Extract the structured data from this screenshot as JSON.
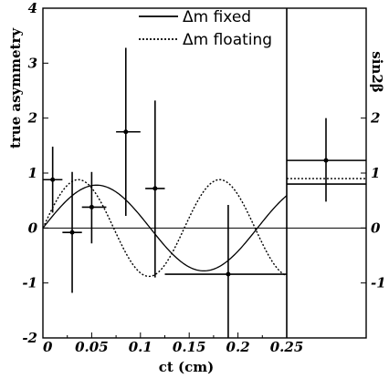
{
  "chart_data": {
    "type": "scatter",
    "xlabel": "ct (cm)",
    "ylabel": "true asymmetry",
    "y2label": "sin2β",
    "xlim": [
      0,
      0.25
    ],
    "ylim": [
      -2,
      4
    ],
    "x_ticks": [
      {
        "value": 0,
        "label": "0"
      },
      {
        "value": 0.05,
        "label": "0.05"
      },
      {
        "value": 0.1,
        "label": "0.1"
      },
      {
        "value": 0.15,
        "label": "0.15"
      },
      {
        "value": 0.2,
        "label": "0.2"
      },
      {
        "value": 0.25,
        "label": "0.25"
      }
    ],
    "y_ticks": [
      {
        "value": -2,
        "label": "-2"
      },
      {
        "value": -1,
        "label": "-1"
      },
      {
        "value": 0,
        "label": "0"
      },
      {
        "value": 1,
        "label": "1"
      },
      {
        "value": 2,
        "label": "2"
      },
      {
        "value": 3,
        "label": "3"
      },
      {
        "value": 4,
        "label": "4"
      }
    ],
    "y2_ticks": [
      {
        "value": -1,
        "label": "-1"
      },
      {
        "value": 0,
        "label": "0"
      },
      {
        "value": 1,
        "label": "1"
      },
      {
        "value": 2,
        "label": "2"
      }
    ],
    "legend": {
      "placement": "top-right",
      "entries": [
        {
          "label": "Δm fixed",
          "style": "solid"
        },
        {
          "label": "Δm floating",
          "style": "dotted"
        }
      ]
    },
    "points": [
      {
        "x": 0.01,
        "y": 0.88,
        "xlow": 0.0,
        "xhigh": 0.02,
        "ylow": 0.28,
        "yhigh": 1.48
      },
      {
        "x": 0.03,
        "y": -0.08,
        "xlow": 0.02,
        "xhigh": 0.04,
        "ylow": -1.18,
        "yhigh": 1.02
      },
      {
        "x": 0.05,
        "y": 0.38,
        "xlow": 0.04,
        "xhigh": 0.065,
        "ylow": -0.28,
        "yhigh": 1.02
      },
      {
        "x": 0.085,
        "y": 1.75,
        "xlow": 0.075,
        "xhigh": 0.1,
        "ylow": 0.22,
        "yhigh": 3.28
      },
      {
        "x": 0.115,
        "y": 0.72,
        "xlow": 0.105,
        "xhigh": 0.125,
        "ylow": -0.9,
        "yhigh": 2.32
      },
      {
        "x": 0.19,
        "y": -0.84,
        "xlow": 0.125,
        "xhigh": 0.25,
        "ylow": -2.0,
        "yhigh": 0.42
      }
    ],
    "inset_point": {
      "y": 1.23,
      "ylow": 0.48,
      "yhigh": 2.0
    },
    "inset_lines": [
      {
        "name": "fixed-band-upper",
        "y": 1.23,
        "style": "solid"
      },
      {
        "name": "floating-level",
        "y": 0.9,
        "style": "dotted"
      },
      {
        "name": "fixed-band-lower",
        "y": 0.8,
        "style": "solid"
      }
    ],
    "curves": {
      "fixed": {
        "amplitude": 0.78,
        "period": 0.22,
        "x_range": [
          0,
          0.25
        ],
        "style": "solid"
      },
      "floating": {
        "amplitude": 0.88,
        "period": 0.145,
        "x_range": [
          0,
          0.25
        ],
        "style": "dotted"
      }
    },
    "grid": false
  }
}
